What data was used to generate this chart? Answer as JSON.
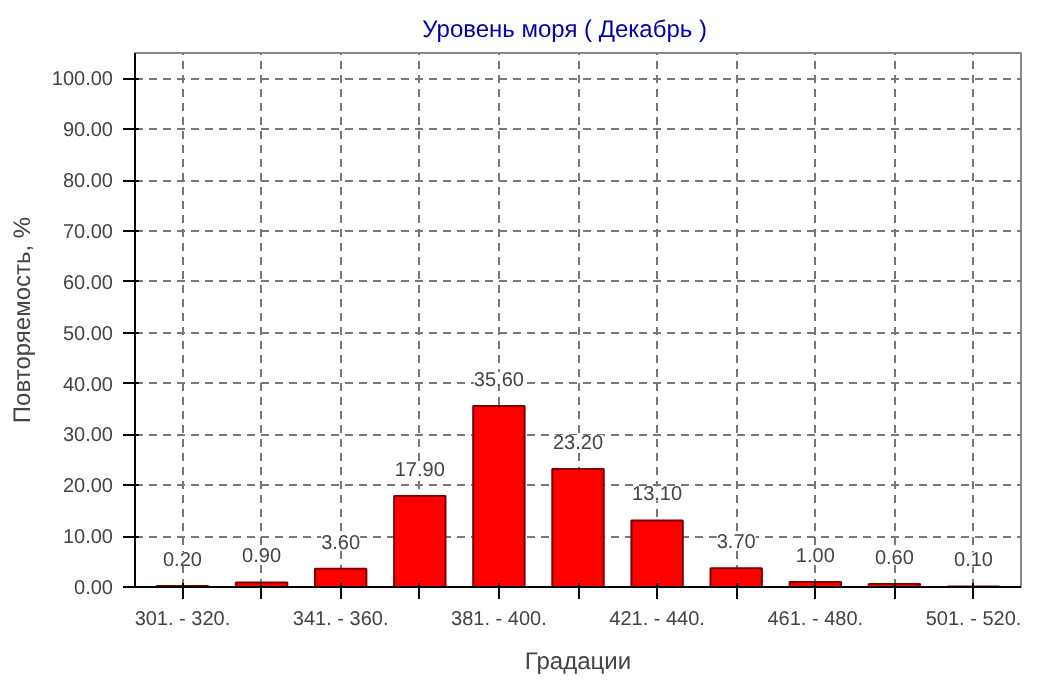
{
  "chart_data": {
    "type": "bar",
    "title": "Уровень моря     ( Декабрь )",
    "xlabel": "Градации",
    "ylabel": "Повторяемость, %",
    "categories": [
      "301. - 320.",
      null,
      "341. - 360.",
      null,
      "381. - 400.",
      null,
      "421. - 440.",
      null,
      "461. - 480.",
      null,
      "501. - 520."
    ],
    "values": [
      0.2,
      0.9,
      3.6,
      17.9,
      35.6,
      23.2,
      13.1,
      3.7,
      1.0,
      0.6,
      0.1
    ],
    "value_labels": [
      "0.20",
      "0.90",
      "3.60",
      "17.90",
      "35.60",
      "23.20",
      "13.10",
      "3.70",
      "1.00",
      "0.60",
      "0.10"
    ],
    "color": "#ff0000",
    "ylim": [
      0,
      105
    ],
    "yticks": [
      {
        "value": 0,
        "label": "0.00"
      },
      {
        "value": 10,
        "label": "10.00"
      },
      {
        "value": 20,
        "label": "20.00"
      },
      {
        "value": 30,
        "label": "30.00"
      },
      {
        "value": 40,
        "label": "40.00"
      },
      {
        "value": 50,
        "label": "50.00"
      },
      {
        "value": 60,
        "label": "60.00"
      },
      {
        "value": 70,
        "label": "70.00"
      },
      {
        "value": 80,
        "label": "80.00"
      },
      {
        "value": 90,
        "label": "90.00"
      },
      {
        "value": 100,
        "label": "100.00"
      }
    ],
    "grid": true
  }
}
